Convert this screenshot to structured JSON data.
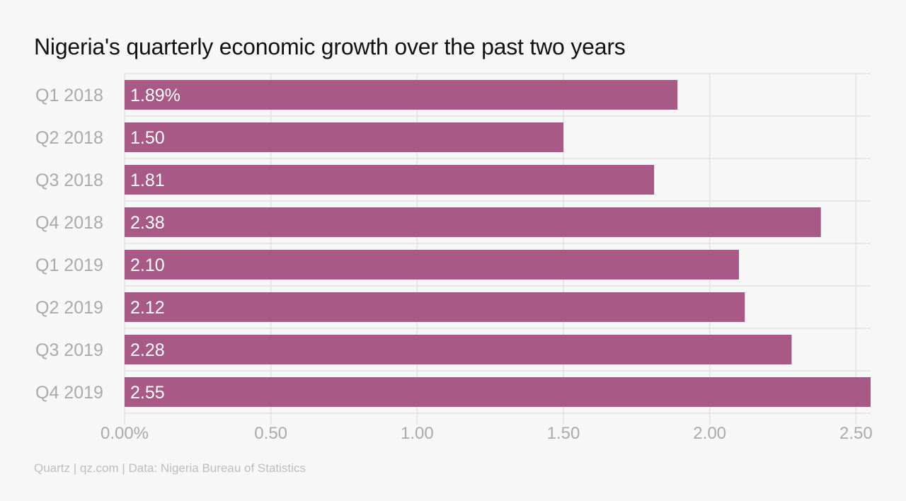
{
  "title": "Nigeria's quarterly economic growth over the past two years",
  "footer": "Quartz | qz.com | Data: Nigeria Bureau of Statistics",
  "colors": {
    "bar": "#a85986",
    "grid": "#e2e2e2",
    "category_label": "#aaaaaa",
    "tick_label": "#aaaaaa",
    "value_label": "#ffffff"
  },
  "chart_data": {
    "type": "bar",
    "orientation": "horizontal",
    "title": "Nigeria's quarterly economic growth over the past two years",
    "categories": [
      "Q1 2018",
      "Q2 2018",
      "Q3 2018",
      "Q4 2018",
      "Q1 2019",
      "Q2 2019",
      "Q3 2019",
      "Q4 2019"
    ],
    "values": [
      1.89,
      1.5,
      1.81,
      2.38,
      2.1,
      2.12,
      2.28,
      2.55
    ],
    "value_labels": [
      "1.89%",
      "1.50",
      "1.81",
      "2.38",
      "2.10",
      "2.12",
      "2.28",
      "2.55"
    ],
    "xticks": [
      0,
      0.5,
      1.0,
      1.5,
      2.0,
      2.5
    ],
    "xtick_labels": [
      "0.00%",
      "0.50",
      "1.00",
      "1.50",
      "2.00",
      "2.50"
    ],
    "xlim": [
      0,
      2.55
    ],
    "xlabel": "",
    "ylabel": "",
    "grid": true,
    "legend": false
  }
}
